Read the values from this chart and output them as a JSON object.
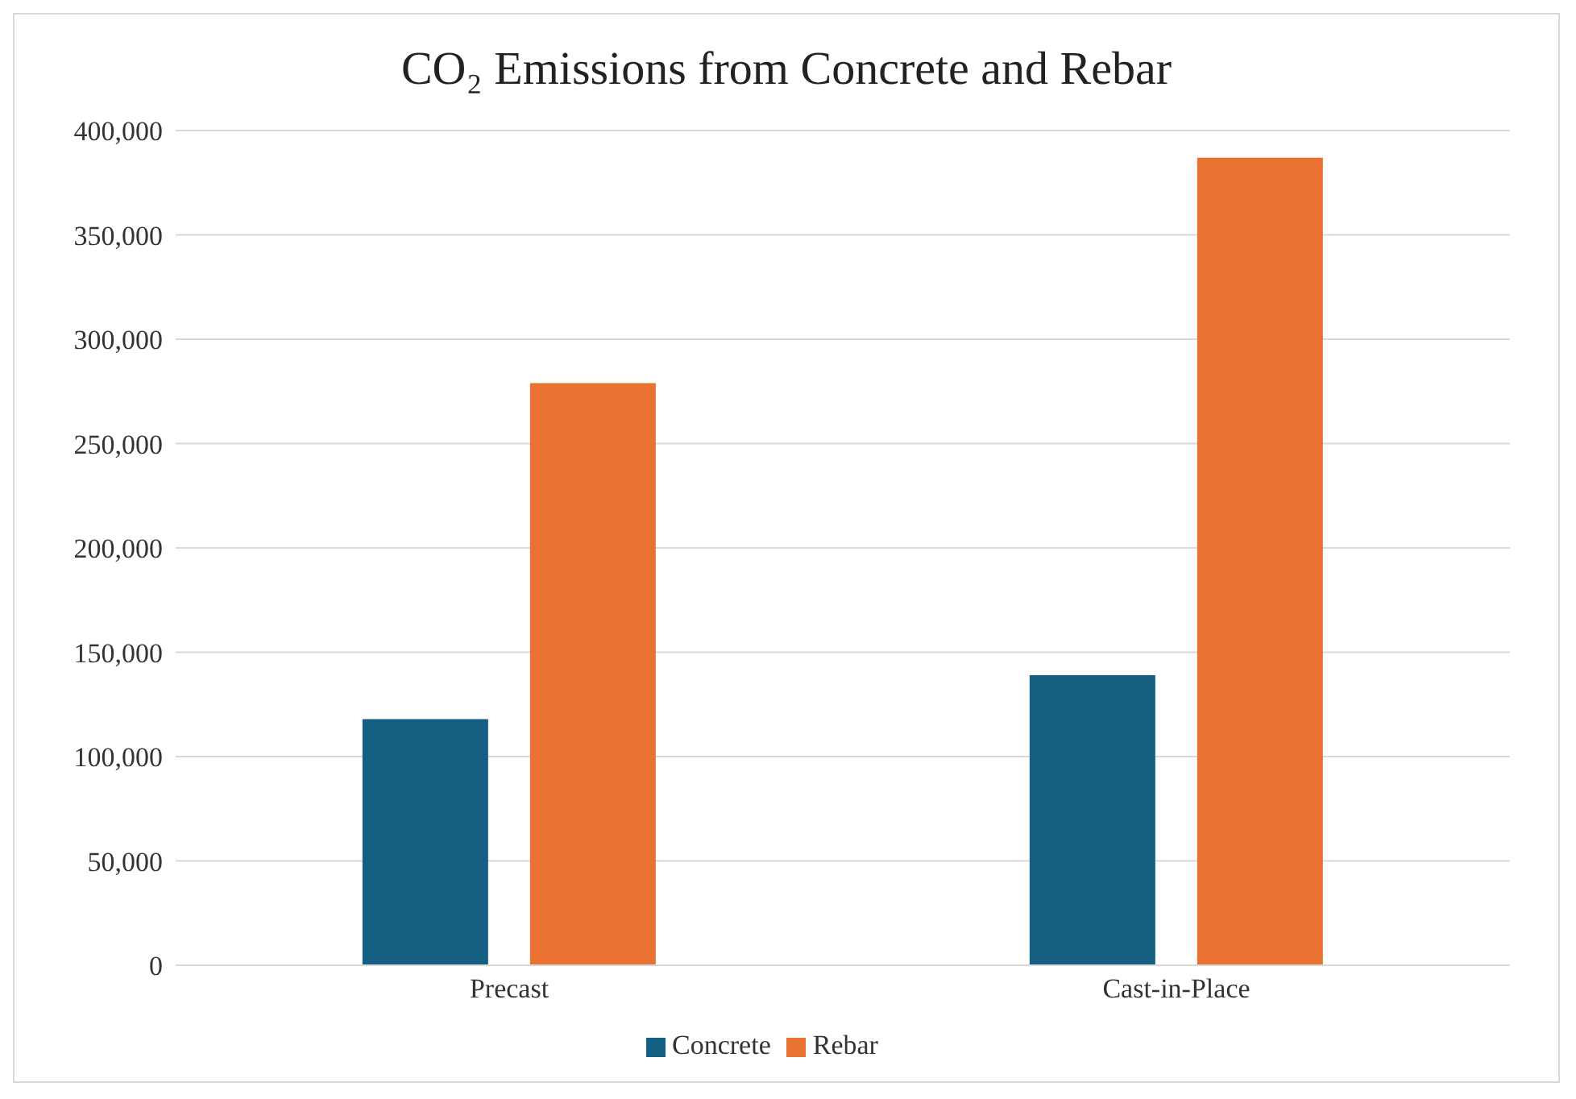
{
  "chart_data": {
    "type": "bar",
    "title": "CO₂ Emissions from Concrete and Rebar",
    "categories": [
      "Precast",
      "Cast-in-Place"
    ],
    "series": [
      {
        "name": "Concrete",
        "color": "#156082",
        "values": [
          118000,
          139000
        ]
      },
      {
        "name": "Rebar",
        "color": "#e97132",
        "values": [
          279000,
          387000
        ]
      }
    ],
    "ylim": [
      0,
      400000
    ],
    "yticks": [
      {
        "value": 0,
        "label": "0"
      },
      {
        "value": 50000,
        "label": "50,000"
      },
      {
        "value": 100000,
        "label": "100,000"
      },
      {
        "value": 150000,
        "label": "150,000"
      },
      {
        "value": 200000,
        "label": "200,000"
      },
      {
        "value": 250000,
        "label": "250,000"
      },
      {
        "value": 300000,
        "label": "300,000"
      },
      {
        "value": 350000,
        "label": "350,000"
      },
      {
        "value": 400000,
        "label": "400,000"
      }
    ],
    "grid": "y",
    "legend": "bottom"
  }
}
